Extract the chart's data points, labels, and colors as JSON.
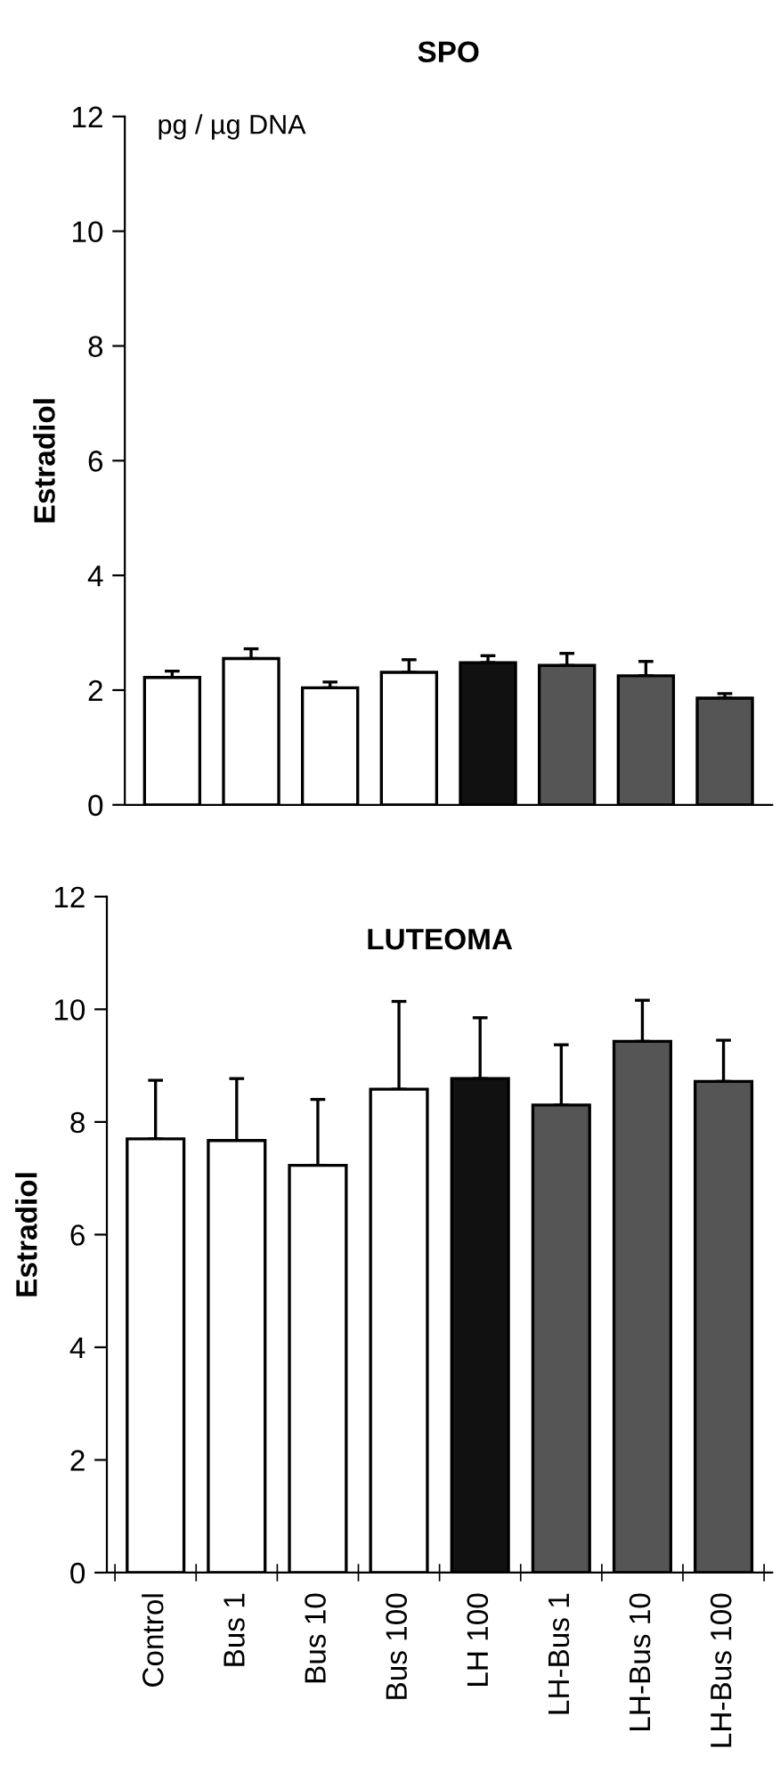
{
  "chart_data": [
    {
      "type": "bar",
      "title": "SPO",
      "ylabel": "Estradiol",
      "annotations": [
        "pg / µg DNA"
      ],
      "categories": [
        null,
        null,
        null,
        null,
        null,
        null,
        null,
        null
      ],
      "values": [
        2.22,
        2.55,
        2.04,
        2.31,
        2.48,
        2.43,
        2.25,
        1.86
      ],
      "errors": [
        [
          2.22,
          2.33
        ],
        [
          2.55,
          2.72
        ],
        [
          2.04,
          2.14
        ],
        [
          2.31,
          2.53
        ],
        [
          2.48,
          2.6
        ],
        [
          2.43,
          2.64
        ],
        [
          2.25,
          2.5
        ],
        [
          1.86,
          1.94
        ]
      ],
      "colors": [
        "#ffffff",
        "#ffffff",
        "#ffffff",
        "#ffffff",
        "#111111",
        "#555555",
        "#555555",
        "#555555"
      ],
      "ylim": [
        0,
        12
      ],
      "yticks": [
        0,
        2,
        4,
        6,
        8,
        10,
        12
      ],
      "tick_labels": "y",
      "grid": false,
      "legend": false
    },
    {
      "type": "bar",
      "title": "LUTEOMA",
      "ylabel": "Estradiol",
      "categories": [
        "Control",
        "Bus 1",
        "Bus 10",
        "Bus 100",
        "LH 100",
        "LH-Bus 1",
        "LH-Bus 10",
        "LH-Bus 100"
      ],
      "values": [
        7.7,
        7.67,
        7.23,
        8.58,
        8.77,
        8.3,
        9.43,
        8.72
      ],
      "errors": [
        [
          7.7,
          8.74
        ],
        [
          7.67,
          8.77
        ],
        [
          7.23,
          8.4
        ],
        [
          8.58,
          10.14
        ],
        [
          8.77,
          9.85
        ],
        [
          8.3,
          9.37
        ],
        [
          9.43,
          10.16
        ],
        [
          8.72,
          9.45
        ]
      ],
      "colors": [
        "#ffffff",
        "#ffffff",
        "#ffffff",
        "#ffffff",
        "#111111",
        "#555555",
        "#555555",
        "#555555"
      ],
      "ylim": [
        0,
        12
      ],
      "yticks": [
        0,
        2,
        4,
        6,
        8,
        10,
        12
      ],
      "grid": false,
      "legend": false
    }
  ]
}
